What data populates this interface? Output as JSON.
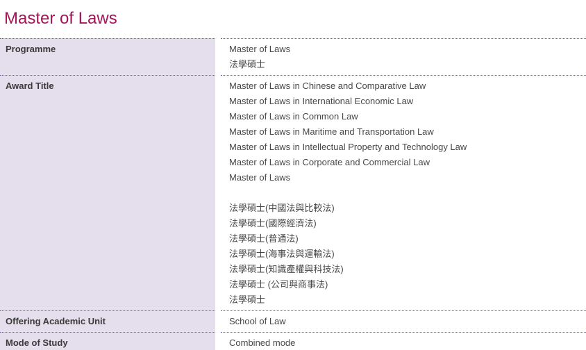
{
  "page": {
    "title": "Master of Laws"
  },
  "colors": {
    "title_color": "#A21559",
    "label_bg": "#E4DEED",
    "border_color": "#7A5CA8",
    "label_text": "#3A3A3A",
    "value_text": "#474747"
  },
  "table": {
    "rows": [
      {
        "label": "Programme",
        "values": [
          "Master of Laws",
          "法學碩士"
        ]
      },
      {
        "label": "Award Title",
        "values": [
          "Master of Laws in Chinese and Comparative Law",
          "Master of Laws in International Economic Law",
          "Master of Laws in Common Law",
          "Master of Laws in Maritime and Transportation Law",
          "Master of Laws in Intellectual Property and Technology Law",
          "Master of Laws in Corporate and Commercial Law",
          "Master of Laws",
          "",
          "法學碩士(中國法與比較法)",
          "法學碩士(國際經濟法)",
          "法學碩士(普通法)",
          "法學碩士(海事法與運輸法)",
          "法學碩士(知識產權與科技法)",
          "法學碩士 (公司與商事法)",
          "法學碩士"
        ]
      },
      {
        "label": "Offering Academic Unit",
        "values": [
          "School of Law"
        ]
      },
      {
        "label": "Mode of Study",
        "values": [
          "Combined mode"
        ]
      }
    ]
  }
}
